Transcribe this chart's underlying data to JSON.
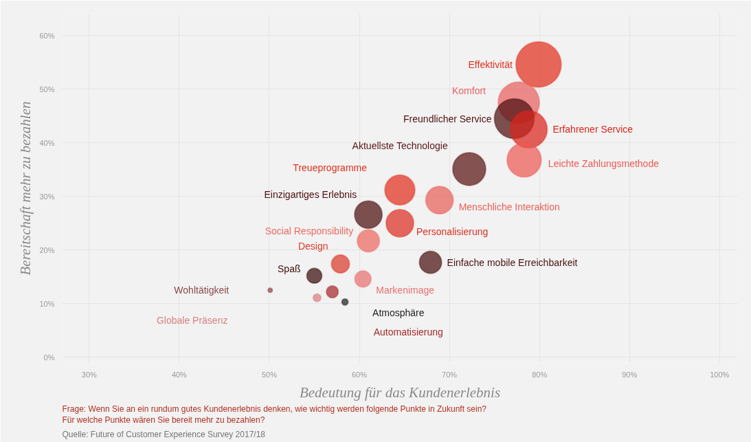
{
  "chart_data": {
    "type": "bubble",
    "xlabel": "Bedeutung für das Kundenerlebnis",
    "ylabel": "Bereitschaft mehr zu bezahlen",
    "xlim": [
      27,
      102
    ],
    "ylim": [
      -1,
      64
    ],
    "xticks": [
      {
        "value": 30,
        "label": "30%"
      },
      {
        "value": 40,
        "label": "40%"
      },
      {
        "value": 50,
        "label": "50%"
      },
      {
        "value": 60,
        "label": "60%"
      },
      {
        "value": 70,
        "label": "70%"
      },
      {
        "value": 80,
        "label": "80%"
      },
      {
        "value": 90,
        "label": "90%"
      },
      {
        "value": 100,
        "label": "100%"
      }
    ],
    "yticks": [
      {
        "value": 0,
        "label": "0%"
      },
      {
        "value": 10,
        "label": "10%"
      },
      {
        "value": 20,
        "label": "20%"
      },
      {
        "value": 30,
        "label": "30%"
      },
      {
        "value": 40,
        "label": "40%"
      },
      {
        "value": 50,
        "label": "50%"
      },
      {
        "value": 60,
        "label": "60%"
      }
    ],
    "grid": true,
    "series": [
      {
        "name": "Effektivität",
        "color": "#e0301e",
        "x": [
          79.9
        ],
        "values": [
          54.6
        ],
        "sizes": [
          1
        ]
      },
      {
        "name": "Komfort",
        "color": "#e86060",
        "x": [
          77.7
        ],
        "values": [
          47.5
        ],
        "sizes": [
          0.83
        ]
      },
      {
        "name": "Freundlicher Service",
        "color": "#4e0f0f",
        "x": [
          77.2
        ],
        "values": [
          44.5
        ],
        "sizes": [
          0.77
        ]
      },
      {
        "name": "Erfahrener Service",
        "color": "#d9261c",
        "x": [
          78.8
        ],
        "values": [
          42.5
        ],
        "sizes": [
          0.67
        ]
      },
      {
        "name": "Leichte Zahlungsmethode",
        "color": "#eb5a55",
        "x": [
          78.3
        ],
        "values": [
          36.8
        ],
        "sizes": [
          0.57
        ]
      },
      {
        "name": "Aktuellste Technologie",
        "color": "#5a1414",
        "x": [
          72.2
        ],
        "values": [
          35.1
        ],
        "sizes": [
          0.53
        ]
      },
      {
        "name": "Menschliche Interaktion",
        "color": "#e8605a",
        "x": [
          68.9
        ],
        "values": [
          29.3
        ],
        "sizes": [
          0.37
        ]
      },
      {
        "name": "Treueprogramme",
        "color": "#e0301e",
        "x": [
          64.5
        ],
        "values": [
          31.2
        ],
        "sizes": [
          0.44
        ]
      },
      {
        "name": "Personalisierung",
        "color": "#db2f22",
        "x": [
          64.5
        ],
        "values": [
          25.0
        ],
        "sizes": [
          0.37
        ]
      },
      {
        "name": "Einzigartiges Erlebnis",
        "color": "#4e0f0f",
        "x": [
          61.0
        ],
        "values": [
          26.6
        ],
        "sizes": [
          0.37
        ]
      },
      {
        "name": "Social Responsibility",
        "color": "#eb6a60",
        "x": [
          61.0
        ],
        "values": [
          21.7
        ],
        "sizes": [
          0.24
        ]
      },
      {
        "name": "Design",
        "color": "#d93a2b",
        "x": [
          57.9
        ],
        "values": [
          17.4
        ],
        "sizes": [
          0.16
        ]
      },
      {
        "name": "Spaß",
        "color": "#3d0c0c",
        "x": [
          55.0
        ],
        "values": [
          15.2
        ],
        "sizes": [
          0.11
        ]
      },
      {
        "name": "Markenimage",
        "color": "#e87070",
        "x": [
          60.4
        ],
        "values": [
          14.6
        ],
        "sizes": [
          0.13
        ]
      },
      {
        "name": "Wohltätigkeit",
        "color": "#8b4a4a",
        "x": [
          50.1
        ],
        "values": [
          12.5
        ],
        "sizes": [
          0.01
        ]
      },
      {
        "name": "Globale Präsenz",
        "color": "#d98080",
        "x": [
          55.3
        ],
        "values": [
          11.1
        ],
        "sizes": [
          0.03
        ]
      },
      {
        "name": "Automatisierung",
        "color": "#a52a2a",
        "x": [
          57.0
        ],
        "values": [
          12.2
        ],
        "sizes": [
          0.07
        ]
      },
      {
        "name": "Atmosphäre",
        "color": "#222222",
        "x": [
          58.4
        ],
        "values": [
          10.3
        ],
        "sizes": [
          0.02
        ]
      },
      {
        "name": "Einfache mobile Erreichbarkeit",
        "color": "#4a1010",
        "x": [
          67.9
        ],
        "values": [
          17.7
        ],
        "sizes": [
          0.24
        ]
      }
    ],
    "annotations": [
      "Frage: Wenn Sie an ein rundum gutes Kundenerlebnis denken, wie wichtig werden folgende Punkte in Zukunft sein?",
      "Für welche Punkte wären Sie bereit mehr zu bezahlen?",
      "Quelle: Future of Customer Experience Survey 2017/18"
    ]
  }
}
